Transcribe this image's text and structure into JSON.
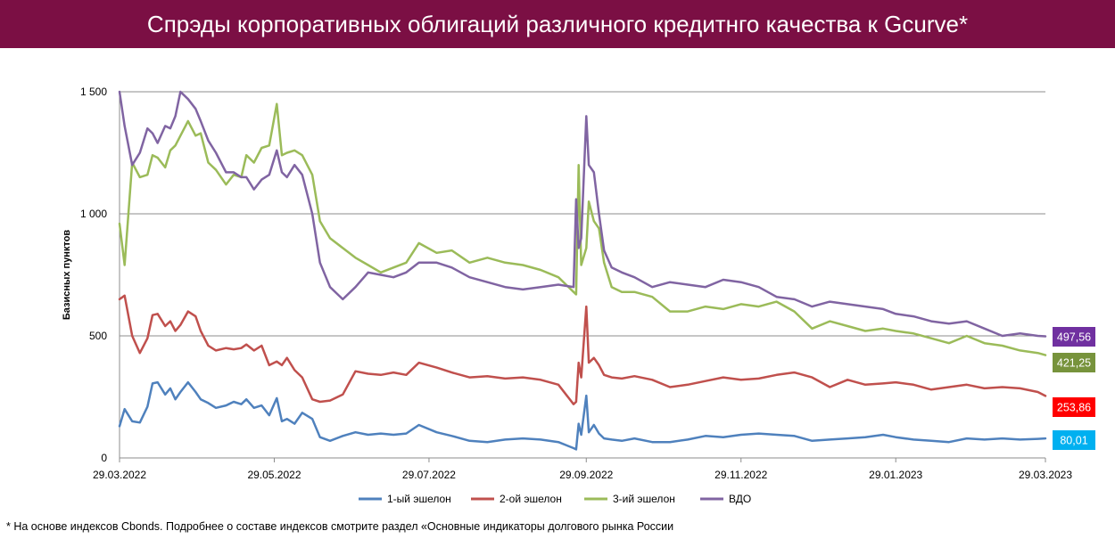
{
  "title": "Спрэды корпоративных облигаций различного кредитнго качества к Gcurve*",
  "footnote": "* На основе индексов Cbonds. Подробнее о составе индексов смотрите раздел «Основные индикаторы долгового рынка России",
  "chart_data": {
    "type": "line",
    "title": "Спрэды корпоративных облигаций различного кредитнго качества к Gcurve*",
    "ylabel": "Базисных пунктов",
    "xlabel": "",
    "ylim": [
      0,
      1500
    ],
    "y_ticks": [
      0,
      500,
      1000,
      1500
    ],
    "y_tick_labels": [
      "0",
      "500",
      "1 000",
      "1 500"
    ],
    "x_range": [
      "2022-03-29",
      "2023-03-29"
    ],
    "x_tick_dates": [
      "2022-03-29",
      "2022-05-29",
      "2022-07-29",
      "2022-09-29",
      "2022-11-29",
      "2023-01-29",
      "2023-03-29"
    ],
    "x_tick_labels": [
      "29.03.2022",
      "29.05.2022",
      "29.07.2022",
      "29.09.2022",
      "29.11.2022",
      "29.01.2023",
      "29.03.2023"
    ],
    "grid": "horizontal",
    "legend_position": "bottom",
    "series": [
      {
        "name": "1-ый эшелон",
        "color": "#4f81bd",
        "last_label": "80,01",
        "label_color": "#00b0f0",
        "x": [
          "2022-03-29",
          "2022-03-31",
          "2022-04-03",
          "2022-04-06",
          "2022-04-09",
          "2022-04-11",
          "2022-04-13",
          "2022-04-16",
          "2022-04-18",
          "2022-04-20",
          "2022-04-22",
          "2022-04-25",
          "2022-04-28",
          "2022-04-30",
          "2022-05-03",
          "2022-05-06",
          "2022-05-10",
          "2022-05-13",
          "2022-05-16",
          "2022-05-18",
          "2022-05-21",
          "2022-05-24",
          "2022-05-27",
          "2022-05-30",
          "2022-06-01",
          "2022-06-03",
          "2022-06-06",
          "2022-06-09",
          "2022-06-13",
          "2022-06-16",
          "2022-06-20",
          "2022-06-25",
          "2022-06-30",
          "2022-07-05",
          "2022-07-10",
          "2022-07-15",
          "2022-07-20",
          "2022-07-25",
          "2022-08-01",
          "2022-08-07",
          "2022-08-14",
          "2022-08-21",
          "2022-08-28",
          "2022-09-04",
          "2022-09-11",
          "2022-09-18",
          "2022-09-24",
          "2022-09-25",
          "2022-09-26",
          "2022-09-27",
          "2022-09-29",
          "2022-09-30",
          "2022-10-02",
          "2022-10-04",
          "2022-10-06",
          "2022-10-09",
          "2022-10-13",
          "2022-10-18",
          "2022-10-25",
          "2022-11-01",
          "2022-11-08",
          "2022-11-15",
          "2022-11-22",
          "2022-11-29",
          "2022-12-06",
          "2022-12-13",
          "2022-12-20",
          "2022-12-27",
          "2023-01-03",
          "2023-01-10",
          "2023-01-17",
          "2023-01-24",
          "2023-01-29",
          "2023-02-05",
          "2023-02-12",
          "2023-02-19",
          "2023-02-26",
          "2023-03-05",
          "2023-03-12",
          "2023-03-19",
          "2023-03-26",
          "2023-03-29"
        ],
        "y": [
          130,
          200,
          150,
          145,
          210,
          305,
          310,
          260,
          285,
          240,
          270,
          310,
          270,
          240,
          225,
          205,
          215,
          230,
          220,
          240,
          205,
          215,
          175,
          245,
          150,
          160,
          140,
          185,
          160,
          85,
          70,
          90,
          105,
          95,
          100,
          95,
          100,
          135,
          105,
          90,
          70,
          65,
          75,
          80,
          75,
          65,
          40,
          35,
          140,
          95,
          255,
          105,
          135,
          100,
          80,
          75,
          70,
          80,
          65,
          65,
          75,
          90,
          85,
          95,
          100,
          95,
          90,
          70,
          75,
          80,
          85,
          95,
          85,
          75,
          70,
          65,
          80,
          75,
          80,
          75,
          78,
          80
        ]
      },
      {
        "name": "2-ой эшелон",
        "color": "#c0504d",
        "last_label": "253,86",
        "label_color": "#ff0000",
        "x": [
          "2022-03-29",
          "2022-03-31",
          "2022-04-03",
          "2022-04-06",
          "2022-04-09",
          "2022-04-11",
          "2022-04-13",
          "2022-04-16",
          "2022-04-18",
          "2022-04-20",
          "2022-04-22",
          "2022-04-25",
          "2022-04-28",
          "2022-04-30",
          "2022-05-03",
          "2022-05-06",
          "2022-05-10",
          "2022-05-13",
          "2022-05-16",
          "2022-05-18",
          "2022-05-21",
          "2022-05-24",
          "2022-05-27",
          "2022-05-30",
          "2022-06-01",
          "2022-06-03",
          "2022-06-06",
          "2022-06-09",
          "2022-06-13",
          "2022-06-16",
          "2022-06-20",
          "2022-06-25",
          "2022-06-30",
          "2022-07-05",
          "2022-07-10",
          "2022-07-15",
          "2022-07-20",
          "2022-07-25",
          "2022-08-01",
          "2022-08-07",
          "2022-08-14",
          "2022-08-21",
          "2022-08-28",
          "2022-09-04",
          "2022-09-11",
          "2022-09-18",
          "2022-09-24",
          "2022-09-25",
          "2022-09-26",
          "2022-09-27",
          "2022-09-29",
          "2022-09-30",
          "2022-10-02",
          "2022-10-04",
          "2022-10-06",
          "2022-10-09",
          "2022-10-13",
          "2022-10-18",
          "2022-10-25",
          "2022-11-01",
          "2022-11-08",
          "2022-11-15",
          "2022-11-22",
          "2022-11-29",
          "2022-12-06",
          "2022-12-13",
          "2022-12-20",
          "2022-12-27",
          "2023-01-03",
          "2023-01-10",
          "2023-01-17",
          "2023-01-24",
          "2023-01-29",
          "2023-02-05",
          "2023-02-12",
          "2023-02-19",
          "2023-02-26",
          "2023-03-05",
          "2023-03-12",
          "2023-03-19",
          "2023-03-26",
          "2023-03-29"
        ],
        "y": [
          650,
          665,
          500,
          430,
          490,
          585,
          590,
          540,
          560,
          520,
          545,
          600,
          580,
          520,
          460,
          440,
          450,
          445,
          450,
          465,
          440,
          460,
          380,
          395,
          380,
          410,
          360,
          330,
          240,
          230,
          235,
          260,
          355,
          345,
          340,
          350,
          340,
          390,
          370,
          350,
          330,
          335,
          325,
          330,
          320,
          300,
          220,
          230,
          390,
          330,
          620,
          390,
          410,
          380,
          340,
          330,
          325,
          335,
          320,
          290,
          300,
          315,
          330,
          320,
          325,
          340,
          350,
          330,
          290,
          320,
          300,
          305,
          310,
          300,
          280,
          290,
          300,
          285,
          290,
          285,
          270,
          254
        ]
      },
      {
        "name": "3-ий эшелон",
        "color": "#9bbb59",
        "last_label": "421,25",
        "label_color": "#77933c",
        "x": [
          "2022-03-29",
          "2022-03-31",
          "2022-04-03",
          "2022-04-06",
          "2022-04-09",
          "2022-04-11",
          "2022-04-13",
          "2022-04-16",
          "2022-04-18",
          "2022-04-20",
          "2022-04-22",
          "2022-04-25",
          "2022-04-28",
          "2022-04-30",
          "2022-05-03",
          "2022-05-06",
          "2022-05-10",
          "2022-05-13",
          "2022-05-16",
          "2022-05-18",
          "2022-05-21",
          "2022-05-24",
          "2022-05-27",
          "2022-05-30",
          "2022-06-01",
          "2022-06-03",
          "2022-06-06",
          "2022-06-09",
          "2022-06-13",
          "2022-06-16",
          "2022-06-20",
          "2022-06-25",
          "2022-06-30",
          "2022-07-05",
          "2022-07-10",
          "2022-07-15",
          "2022-07-20",
          "2022-07-25",
          "2022-08-01",
          "2022-08-07",
          "2022-08-14",
          "2022-08-21",
          "2022-08-28",
          "2022-09-04",
          "2022-09-11",
          "2022-09-18",
          "2022-09-24",
          "2022-09-25",
          "2022-09-26",
          "2022-09-27",
          "2022-09-29",
          "2022-09-30",
          "2022-10-02",
          "2022-10-04",
          "2022-10-06",
          "2022-10-09",
          "2022-10-13",
          "2022-10-18",
          "2022-10-25",
          "2022-11-01",
          "2022-11-08",
          "2022-11-15",
          "2022-11-22",
          "2022-11-29",
          "2022-12-06",
          "2022-12-13",
          "2022-12-20",
          "2022-12-27",
          "2023-01-03",
          "2023-01-10",
          "2023-01-17",
          "2023-01-24",
          "2023-01-29",
          "2023-02-05",
          "2023-02-12",
          "2023-02-19",
          "2023-02-26",
          "2023-03-05",
          "2023-03-12",
          "2023-03-19",
          "2023-03-26",
          "2023-03-29"
        ],
        "y": [
          960,
          790,
          1210,
          1150,
          1160,
          1240,
          1230,
          1190,
          1260,
          1280,
          1320,
          1380,
          1320,
          1330,
          1210,
          1180,
          1120,
          1160,
          1150,
          1240,
          1210,
          1270,
          1280,
          1450,
          1240,
          1250,
          1260,
          1240,
          1160,
          970,
          900,
          860,
          820,
          790,
          760,
          780,
          800,
          880,
          840,
          850,
          800,
          820,
          800,
          790,
          770,
          740,
          680,
          670,
          1200,
          790,
          860,
          1050,
          970,
          940,
          800,
          700,
          680,
          680,
          660,
          600,
          600,
          620,
          610,
          630,
          620,
          640,
          600,
          530,
          560,
          540,
          520,
          530,
          520,
          510,
          490,
          470,
          500,
          470,
          460,
          440,
          430,
          421
        ]
      },
      {
        "name": "ВДО",
        "color": "#8064a2",
        "last_label": "497,56",
        "label_color": "#7030a0",
        "x": [
          "2022-03-29",
          "2022-03-31",
          "2022-04-03",
          "2022-04-06",
          "2022-04-09",
          "2022-04-11",
          "2022-04-13",
          "2022-04-16",
          "2022-04-18",
          "2022-04-20",
          "2022-04-22",
          "2022-04-25",
          "2022-04-28",
          "2022-04-30",
          "2022-05-03",
          "2022-05-06",
          "2022-05-10",
          "2022-05-13",
          "2022-05-16",
          "2022-05-18",
          "2022-05-21",
          "2022-05-24",
          "2022-05-27",
          "2022-05-30",
          "2022-06-01",
          "2022-06-03",
          "2022-06-06",
          "2022-06-09",
          "2022-06-13",
          "2022-06-16",
          "2022-06-20",
          "2022-06-25",
          "2022-06-30",
          "2022-07-05",
          "2022-07-10",
          "2022-07-15",
          "2022-07-20",
          "2022-07-25",
          "2022-08-01",
          "2022-08-07",
          "2022-08-14",
          "2022-08-21",
          "2022-08-28",
          "2022-09-04",
          "2022-09-11",
          "2022-09-18",
          "2022-09-24",
          "2022-09-25",
          "2022-09-26",
          "2022-09-27",
          "2022-09-29",
          "2022-09-30",
          "2022-10-02",
          "2022-10-04",
          "2022-10-06",
          "2022-10-09",
          "2022-10-13",
          "2022-10-18",
          "2022-10-25",
          "2022-11-01",
          "2022-11-08",
          "2022-11-15",
          "2022-11-22",
          "2022-11-29",
          "2022-12-06",
          "2022-12-13",
          "2022-12-20",
          "2022-12-27",
          "2023-01-03",
          "2023-01-10",
          "2023-01-17",
          "2023-01-24",
          "2023-01-29",
          "2023-02-05",
          "2023-02-12",
          "2023-02-19",
          "2023-02-26",
          "2023-03-05",
          "2023-03-12",
          "2023-03-19",
          "2023-03-26",
          "2023-03-29"
        ],
        "y": [
          1500,
          1360,
          1200,
          1250,
          1350,
          1330,
          1290,
          1360,
          1350,
          1400,
          1500,
          1470,
          1430,
          1380,
          1300,
          1250,
          1170,
          1170,
          1150,
          1150,
          1100,
          1140,
          1160,
          1260,
          1170,
          1150,
          1200,
          1160,
          1000,
          800,
          700,
          650,
          700,
          760,
          750,
          740,
          760,
          800,
          800,
          780,
          740,
          720,
          700,
          690,
          700,
          710,
          700,
          1060,
          860,
          900,
          1400,
          1200,
          1170,
          1000,
          850,
          780,
          760,
          740,
          700,
          720,
          710,
          700,
          730,
          720,
          700,
          660,
          650,
          620,
          640,
          630,
          620,
          610,
          590,
          580,
          560,
          550,
          560,
          530,
          500,
          510,
          500,
          498
        ]
      }
    ]
  }
}
